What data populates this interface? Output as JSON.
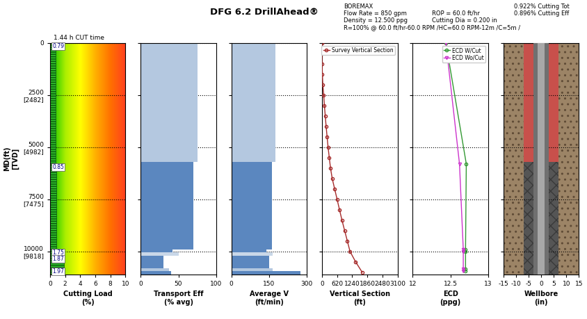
{
  "title": "DFG 6.2 DrillAhead®",
  "header": {
    "left": [
      "BOREMAX",
      "Flow Rate = 850 gpm",
      "Density = 12.500 ppg",
      "R=100% @ 60.0 ft/hr-60.0 RPM /HC=60.0 RPM-12m /C=5m /"
    ],
    "middle": [
      "ROP = 60.0 ft/hr",
      "Cutting Dia = 0.200 in"
    ],
    "right": [
      "0.922% Cutting Tot",
      "0.896% Cutting Eff"
    ]
  },
  "chart_data": [
    {
      "type": "profile",
      "xlabel": "Cutting Load\n(%)",
      "ylabel": "MD(ft)\n[TVD]",
      "xlim": [
        0,
        10
      ],
      "xticks": [
        0,
        2,
        4,
        6,
        8,
        10
      ],
      "ylim": [
        11100,
        0
      ],
      "yticks": [
        0,
        {
          "value": 2500,
          "label": "2500\n[2482]"
        },
        {
          "value": 5000,
          "label": "5000\n[4982]"
        },
        {
          "value": 7500,
          "label": "7500\n[7475]"
        },
        {
          "value": 10000,
          "label": "10000\n[9818]"
        }
      ],
      "annotations": [
        "1.44 h CUT time"
      ],
      "depth_bins": [
        0,
        5800,
        9900,
        10200,
        10800,
        11100
      ],
      "values": [
        0.79,
        0.85,
        1.75,
        1.87,
        1.97
      ],
      "color": "#2db82d",
      "data_labels": true,
      "grid": true
    },
    {
      "type": "profile",
      "xlabel": "Transport Eff\n(% avg)",
      "xlim": [
        0,
        100
      ],
      "xticks": [
        0,
        50,
        100
      ],
      "ylim": [
        11100,
        0
      ],
      "yticks": [
        0,
        2500,
        5000,
        7500,
        10000
      ],
      "tick_labels": "x",
      "depth_bins": [
        0,
        5700,
        9900,
        10050,
        10200,
        10800,
        10950,
        11100
      ],
      "values": [
        75,
        70,
        42,
        50,
        30,
        38,
        40
      ],
      "colors": [
        "#b4c8e0",
        "#5b87bf",
        "#5b87bf",
        "#c9d7e8",
        "#5b87bf",
        "#b4c8e0",
        "#5b87bf"
      ],
      "grid": true
    },
    {
      "type": "profile",
      "xlabel": "Average V\n(ft/min)",
      "xlim": [
        0,
        300
      ],
      "xticks": [
        0,
        150,
        300
      ],
      "ylim": [
        11100,
        0
      ],
      "yticks": [
        0,
        2500,
        5000,
        7500,
        10000
      ],
      "tick_labels": "x",
      "depth_bins": [
        0,
        5700,
        9900,
        10050,
        10200,
        10800,
        10950,
        11100
      ],
      "values": [
        175,
        160,
        140,
        165,
        150,
        165,
        275
      ],
      "colors": [
        "#b4c8e0",
        "#5b87bf",
        "#5b87bf",
        "#c9d7e8",
        "#5b87bf",
        "#b4c8e0",
        "#5b87bf"
      ],
      "grid": true
    },
    {
      "type": "line",
      "xlabel": "Vertical Section\n(ft)",
      "xlim": [
        0,
        3100
      ],
      "xticks": [
        0,
        620,
        1240,
        1860,
        2480,
        3100
      ],
      "ylim": [
        11100,
        0
      ],
      "yticks": [
        0,
        2500,
        5000,
        7500,
        10000
      ],
      "tick_labels": "x",
      "series": [
        {
          "name": "Survey Vertical Section",
          "color": "#a52a2a",
          "marker": "circle",
          "depths": [
            0,
            500,
            1000,
            1500,
            2000,
            2500,
            3000,
            3500,
            4000,
            4500,
            5000,
            5500,
            6000,
            6500,
            7000,
            7500,
            8000,
            8500,
            9000,
            9500,
            10000,
            10500,
            11000
          ],
          "values": [
            0,
            0,
            5,
            15,
            35,
            70,
            100,
            135,
            170,
            210,
            250,
            300,
            350,
            420,
            520,
            620,
            720,
            820,
            930,
            1040,
            1150,
            1380,
            1650
          ]
        }
      ],
      "legend": "upper right",
      "grid": true
    },
    {
      "type": "line",
      "xlabel": "ECD\n(ppg)",
      "xlim": [
        12,
        13
      ],
      "xticks": [
        12,
        12.5,
        13
      ],
      "ylim": [
        11100,
        0
      ],
      "yticks": [
        0,
        2500,
        5000,
        7500,
        10000
      ],
      "tick_labels": "x",
      "series": [
        {
          "name": "ECD W/Cut",
          "color": "#339933",
          "marker": "circle",
          "depths": [
            0,
            5800,
            9900,
            10000,
            10850,
            10950
          ],
          "values": [
            12.44,
            12.71,
            12.7,
            12.7,
            12.7,
            12.7
          ]
        },
        {
          "name": "ECD Wo/Cut",
          "color": "#cc33cc",
          "marker": "triangle_down",
          "depths": [
            0,
            5800,
            9900,
            10000,
            10850,
            10950
          ],
          "values": [
            12.44,
            12.62,
            12.67,
            12.67,
            12.67,
            12.67
          ]
        }
      ],
      "legend": "upper right",
      "grid": true
    },
    {
      "type": "wellbore",
      "xlabel": "Wellbore\n(in)",
      "xlim": [
        -15,
        15
      ],
      "xticks": [
        -15,
        -10,
        -5,
        0,
        5,
        10,
        15
      ],
      "ylim": [
        11100,
        0
      ],
      "yticks": [
        0,
        2500,
        5000,
        7500,
        10000
      ],
      "tick_labels": "x",
      "casing_shoe": 5700,
      "hole_radius": 7,
      "pipe_radius": 3,
      "bore_radius": 1.5,
      "grid": true
    }
  ]
}
